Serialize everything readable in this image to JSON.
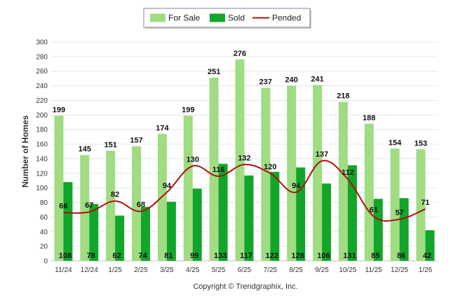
{
  "chart_data": {
    "type": "bar",
    "categories": [
      "11/24",
      "12/24",
      "1/25",
      "2/25",
      "3/25",
      "4/25",
      "5/25",
      "6/25",
      "7/25",
      "8/25",
      "9/25",
      "10/25",
      "11/25",
      "12/25",
      "1/26"
    ],
    "series": [
      {
        "name": "For Sale",
        "kind": "bar",
        "color": "#a0dc82",
        "values": [
          199,
          145,
          151,
          157,
          174,
          199,
          251,
          276,
          237,
          240,
          241,
          218,
          188,
          154,
          153
        ]
      },
      {
        "name": "Sold",
        "kind": "bar",
        "color": "#12a52b",
        "values": [
          108,
          78,
          62,
          74,
          81,
          99,
          133,
          117,
          122,
          128,
          106,
          131,
          85,
          86,
          42
        ]
      },
      {
        "name": "Pended",
        "kind": "line",
        "color": "#b01010",
        "values": [
          66,
          67,
          82,
          68,
          94,
          130,
          116,
          132,
          120,
          94,
          137,
          112,
          61,
          57,
          71
        ]
      }
    ],
    "title": "",
    "xlabel": "",
    "ylabel": "Number of Homes",
    "ylim": [
      0,
      300
    ],
    "yticks": [
      0,
      20,
      40,
      60,
      80,
      100,
      120,
      140,
      160,
      180,
      200,
      220,
      240,
      260,
      280,
      300
    ],
    "grid": true,
    "legend_position": "top-center",
    "footer": "Copyright © Trendgraphix, Inc."
  }
}
